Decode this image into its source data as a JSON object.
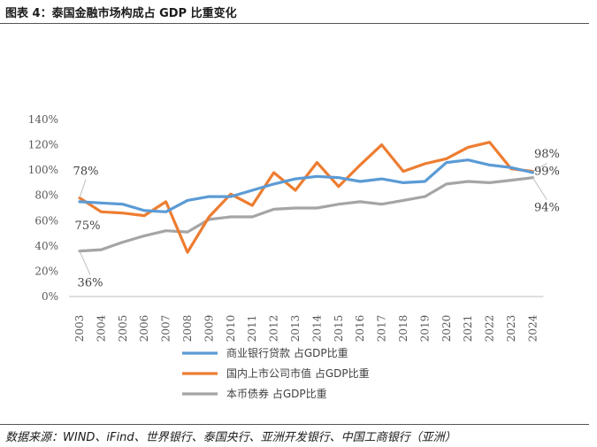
{
  "title": "图表 4：泰国金融市场构成占 GDP 比重变化",
  "source": "数据来源：WIND、iFind、世界银行、泰国央行、亚洲开发银行、中国工商银行（亚洲）",
  "chart_data": {
    "type": "line",
    "title": "图表 4：泰国金融市场构成占 GDP 比重变化",
    "categories": [
      "2003",
      "2004",
      "2005",
      "2006",
      "2007",
      "2008",
      "2009",
      "2010",
      "2011",
      "2012",
      "2013",
      "2014",
      "2015",
      "2016",
      "2017",
      "2018",
      "2019",
      "2020",
      "2021",
      "2022",
      "2023",
      "2024"
    ],
    "ylim": [
      0,
      140
    ],
    "yticks": [
      "0%",
      "20%",
      "40%",
      "60%",
      "80%",
      "100%",
      "120%",
      "140%"
    ],
    "ytick_values": [
      0,
      20,
      40,
      60,
      80,
      100,
      120,
      140
    ],
    "grid": false,
    "legend_position": "bottom",
    "series": [
      {
        "name": "商业银行贷款 占GDP比重",
        "color": "#5B9BD5",
        "values": [
          75,
          74,
          73,
          68,
          67,
          76,
          79,
          79,
          84,
          89,
          93,
          95,
          94,
          91,
          93,
          90,
          91,
          106,
          108,
          104,
          102,
          98
        ]
      },
      {
        "name": "国内上市公司市值 占GDP比重",
        "color": "#ED7D31",
        "values": [
          78,
          67,
          66,
          64,
          75,
          35,
          63,
          81,
          72,
          98,
          84,
          106,
          87,
          104,
          120,
          99,
          105,
          109,
          118,
          122,
          101,
          99
        ]
      },
      {
        "name": "本币债券 占GDP比重",
        "color": "#A5A5A5",
        "values": [
          36,
          37,
          43,
          48,
          52,
          51,
          61,
          63,
          63,
          69,
          70,
          70,
          73,
          75,
          73,
          76,
          79,
          89,
          91,
          90,
          92,
          94
        ]
      }
    ],
    "data_labels": [
      {
        "series": 1,
        "index": 0,
        "text": "78%"
      },
      {
        "series": 0,
        "index": 0,
        "text": "75%"
      },
      {
        "series": 2,
        "index": 0,
        "text": "36%"
      },
      {
        "series": 0,
        "index": 21,
        "text": "98%"
      },
      {
        "series": 1,
        "index": 21,
        "text": "99%"
      },
      {
        "series": 2,
        "index": 21,
        "text": "94%"
      }
    ]
  }
}
